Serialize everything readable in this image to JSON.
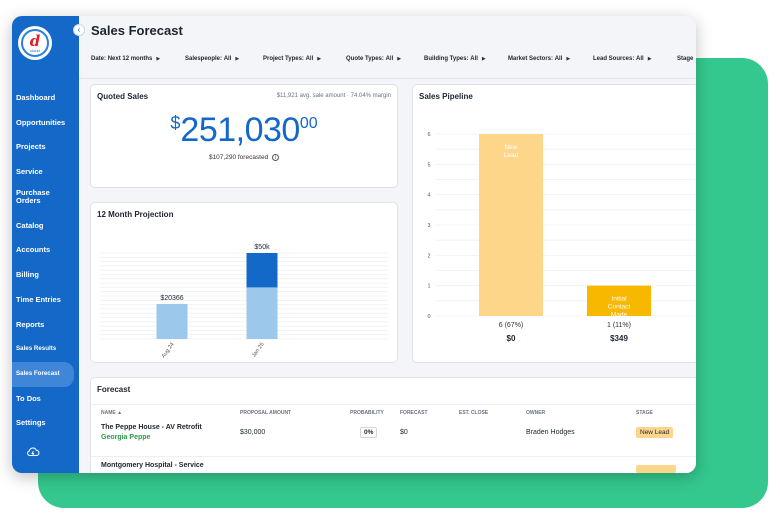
{
  "app": {
    "logo_letter": "d",
    "logo_sub": "cloud"
  },
  "sidebar": {
    "items": [
      {
        "label": "Dashboard"
      },
      {
        "label": "Opportunities"
      },
      {
        "label": "Projects"
      },
      {
        "label": "Service"
      },
      {
        "label": "Purchase Orders"
      },
      {
        "label": "Catalog"
      },
      {
        "label": "Accounts"
      },
      {
        "label": "Billing"
      },
      {
        "label": "Time Entries"
      },
      {
        "label": "Reports"
      },
      {
        "label": "Sales Results"
      },
      {
        "label": "Sales Forecast"
      },
      {
        "label": "To Dos"
      },
      {
        "label": "Settings"
      }
    ],
    "active": "Sales Forecast",
    "accent_color": "#1468c8"
  },
  "header": {
    "title": "Sales Forecast"
  },
  "filters": [
    {
      "label": "Date:",
      "value": "Next 12 months"
    },
    {
      "label": "Salespeople:",
      "value": "All"
    },
    {
      "label": "Project Types:",
      "value": "All"
    },
    {
      "label": "Quote Types:",
      "value": "All"
    },
    {
      "label": "Building Types:",
      "value": "All"
    },
    {
      "label": "Market Sectors:",
      "value": "All"
    },
    {
      "label": "Lead Sources:",
      "value": "All"
    },
    {
      "label": "Stage",
      "value": ""
    }
  ],
  "quoted_sales": {
    "title": "Quoted Sales",
    "avg_amount": "$11,921 avg. sale amount",
    "separator": "·",
    "margin": "74.04% margin",
    "currency": "$",
    "amount": "251,030",
    "cents": "00",
    "forecasted": "$107,290 forecasted"
  },
  "projection": {
    "title": "12 Month Projection"
  },
  "pipeline": {
    "title": "Sales Pipeline"
  },
  "chart_data": [
    {
      "type": "bar",
      "title": "12 Month Projection",
      "categories": [
        "Aug 24",
        "Jan 25"
      ],
      "series": [
        {
          "values": [
            20366,
            30000
          ],
          "color": "#9cc8ec"
        },
        {
          "values": [
            0,
            20000
          ],
          "color": "#1468c8"
        }
      ],
      "data_labels": [
        "$20366",
        "$50k"
      ],
      "ylim": [
        0,
        50000
      ],
      "grid": true
    },
    {
      "type": "bar",
      "title": "Sales Pipeline",
      "categories": [
        "New Lead",
        "Initial Contact Made"
      ],
      "values": [
        6,
        1
      ],
      "colors": [
        "#fdd68a",
        "#f8b800"
      ],
      "count_labels": [
        "6 (67%)",
        "1 (11%)"
      ],
      "amount_labels": [
        "$0",
        "$349"
      ],
      "yticks": [
        0,
        1,
        2,
        3,
        4,
        5,
        6
      ],
      "ylim": [
        0,
        6
      ],
      "grid": true
    }
  ],
  "forecast": {
    "title": "Forecast",
    "columns": [
      "NAME ▲",
      "PROPOSAL AMOUNT",
      "PROBABILITY",
      "FORECAST",
      "EST. CLOSE",
      "OWNER",
      "STAGE"
    ],
    "rows": [
      {
        "name": "The Peppe House - AV Retrofit",
        "account": "Georgia Peppe",
        "proposal_amount": "$30,000",
        "probability": "0%",
        "forecast": "$0",
        "est_close": "",
        "owner": "Braden Hodges",
        "stage": "New Lead"
      },
      {
        "name": "Montgomery Hospital - Service",
        "account": "",
        "proposal_amount": "",
        "probability": "",
        "forecast": "",
        "est_close": "",
        "owner": "",
        "stage": ""
      }
    ]
  },
  "icons": {
    "collapse": "chevron-left-icon",
    "cloud": "cloud-sync-icon",
    "info": "info-icon",
    "download": "download-icon"
  },
  "colors": {
    "green_backdrop": "#34c88e",
    "stage_badge": "#fcd68a",
    "account_link": "#2a9a45"
  }
}
